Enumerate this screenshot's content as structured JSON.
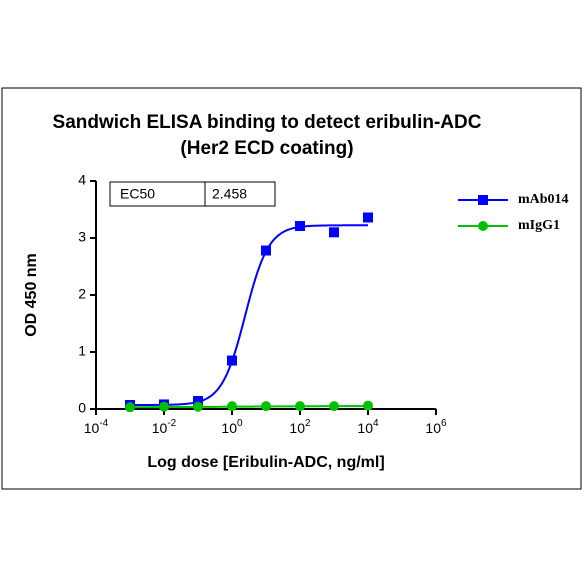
{
  "chart_data": {
    "type": "dose_response",
    "title": "Sandwich ELISA binding to detect eribulin-ADC",
    "subtitle": "(Her2 ECD coating)",
    "x_label": "Log dose [Eribulin-ADC, ng/ml]",
    "y_label": "OD 450 nm",
    "x": [
      0.001,
      0.01,
      0.1,
      1,
      10,
      100,
      1000,
      10000
    ],
    "series": [
      {
        "name": "mAb014",
        "color": "#0000ff",
        "marker": "square",
        "values": [
          0.07,
          0.08,
          0.14,
          0.85,
          2.78,
          3.21,
          3.1,
          3.36
        ]
      },
      {
        "name": "mIgG1",
        "color": "#00c000",
        "marker": "circle",
        "values": [
          0.03,
          0.04,
          0.04,
          0.05,
          0.05,
          0.05,
          0.05,
          0.06
        ]
      }
    ],
    "ec50_table": {
      "label": "EC50",
      "value": 2.458
    },
    "x_log": true,
    "xlim": [
      0.0001,
      1000000
    ],
    "xticks": [
      {
        "value": 0.0001,
        "label": "10-4"
      },
      {
        "value": 0.01,
        "label": "10-2"
      },
      {
        "value": 1,
        "label": "100"
      },
      {
        "value": 100,
        "label": "102"
      },
      {
        "value": 10000,
        "label": "104"
      },
      {
        "value": 1000000,
        "label": "106"
      }
    ],
    "ylim": [
      0,
      4
    ],
    "yticks": [
      0,
      1,
      2,
      3,
      4
    ],
    "legend": "right"
  }
}
